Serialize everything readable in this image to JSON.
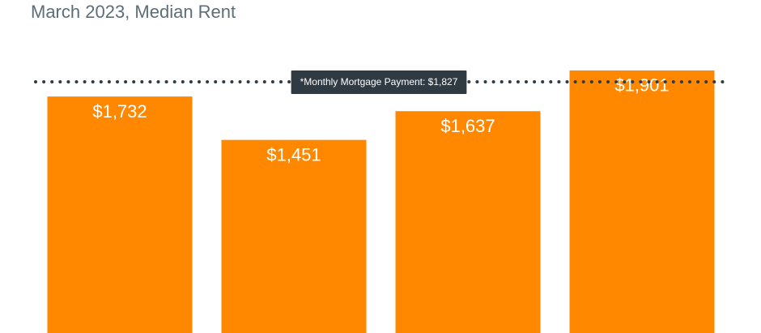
{
  "chart_data": {
    "type": "bar",
    "title": "March 2023, Median Rent",
    "categories": [
      null,
      null,
      null,
      null
    ],
    "values": [
      1732,
      1451,
      1637,
      1901
    ],
    "value_labels": [
      "$1,732",
      "$1,451",
      "$1,637",
      "$1,901"
    ],
    "color": "#ff8800",
    "ylim": [
      200,
      2100
    ],
    "reference_line": {
      "value": 1827,
      "label": "*Monthly Mortgage Payment: $1,827",
      "color": "#2f3a42"
    }
  }
}
